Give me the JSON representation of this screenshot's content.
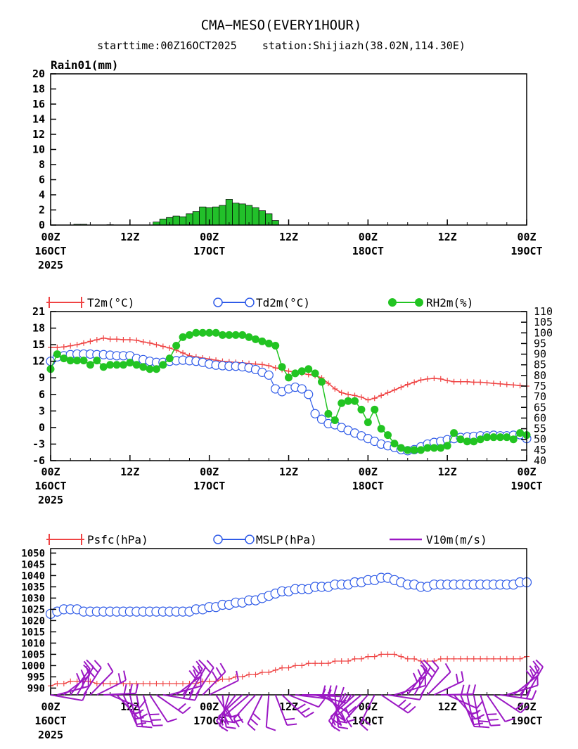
{
  "header": {
    "title": "CMA−MESO(EVERY1HOUR)",
    "subtitle": "starttime:00Z16OCT2025    station:Shijiazh(38.02N,114.30E)"
  },
  "colors": {
    "rain": "#22c02a",
    "t2m": "#ef4444",
    "td2m": "#2f5be8",
    "rh2m": "#22c422",
    "psfc": "#ef4444",
    "mslp": "#2f5be8",
    "v10m": "#9b18c4"
  },
  "time_axis": {
    "hours_total": 72,
    "ticks": [
      {
        "hour": 0,
        "line1": "00Z",
        "line2": "16OCT",
        "line3": "2025"
      },
      {
        "hour": 12,
        "line1": "12Z",
        "line2": "",
        "line3": ""
      },
      {
        "hour": 24,
        "line1": "00Z",
        "line2": "17OCT",
        "line3": ""
      },
      {
        "hour": 36,
        "line1": "12Z",
        "line2": "",
        "line3": ""
      },
      {
        "hour": 48,
        "line1": "00Z",
        "line2": "18OCT",
        "line3": ""
      },
      {
        "hour": 60,
        "line1": "12Z",
        "line2": "",
        "line3": ""
      },
      {
        "hour": 72,
        "line1": "00Z",
        "line2": "19OCT",
        "line3": ""
      }
    ]
  },
  "chart_data": [
    {
      "type": "bar",
      "label": "Rain01(mm)",
      "ylim": [
        0,
        20
      ],
      "yticks": [
        0,
        2,
        4,
        6,
        8,
        10,
        12,
        14,
        16,
        18,
        20
      ],
      "x_hours": [
        4,
        5,
        9,
        16,
        17,
        18,
        19,
        20,
        21,
        22,
        23,
        24,
        25,
        26,
        27,
        28,
        29,
        30,
        31,
        32,
        33,
        34
      ],
      "values": [
        0.1,
        0.1,
        0.05,
        0.4,
        0.8,
        1.0,
        1.2,
        1.1,
        1.5,
        1.8,
        2.4,
        2.3,
        2.4,
        2.6,
        3.4,
        2.9,
        2.8,
        2.6,
        2.3,
        1.9,
        1.5,
        0.6
      ]
    },
    {
      "type": "line",
      "yticks_left": [
        -6,
        -3,
        0,
        3,
        6,
        9,
        12,
        15,
        18,
        21
      ],
      "ylim_left": [
        -6,
        21
      ],
      "yticks_right": [
        40,
        45,
        50,
        55,
        60,
        65,
        70,
        75,
        80,
        85,
        90,
        95,
        100,
        105,
        110
      ],
      "ylim_right": [
        40,
        110
      ],
      "legend": [
        {
          "key": "t2m",
          "label": "T2m(°C)"
        },
        {
          "key": "td2m",
          "label": "Td2m(°C)"
        },
        {
          "key": "rh2m",
          "label": "RH2m(%)"
        }
      ],
      "series": {
        "t2m": [
          14.5,
          14.5,
          14.6,
          14.8,
          15.0,
          15.3,
          15.6,
          15.9,
          16.2,
          16.0,
          16.0,
          15.9,
          15.9,
          15.8,
          15.5,
          15.3,
          15.0,
          14.7,
          14.4,
          14.0,
          13.5,
          13.0,
          12.8,
          12.6,
          12.4,
          12.2,
          12.0,
          11.9,
          11.8,
          11.7,
          11.6,
          11.5,
          11.4,
          11.2,
          10.8,
          10.5,
          10.2,
          10.0,
          9.8,
          9.6,
          9.4,
          9.0,
          8.0,
          7.0,
          6.3,
          6.0,
          5.8,
          5.5,
          5.0,
          5.3,
          5.8,
          6.3,
          6.8,
          7.3,
          7.8,
          8.2,
          8.6,
          8.8,
          8.9,
          8.8,
          8.5,
          8.3,
          8.3,
          8.3,
          8.2,
          8.2,
          8.1,
          8.0,
          7.9,
          7.8,
          7.7,
          7.6,
          7.5
        ],
        "td2m": [
          12.0,
          12.8,
          13.0,
          13.2,
          13.3,
          13.3,
          13.3,
          13.2,
          13.2,
          13.1,
          13.0,
          13.0,
          13.0,
          12.5,
          12.3,
          12.0,
          11.8,
          11.8,
          12.0,
          12.1,
          12.2,
          12.1,
          12.0,
          11.8,
          11.5,
          11.3,
          11.2,
          11.1,
          11.1,
          11.0,
          10.8,
          10.5,
          10.0,
          9.5,
          7.0,
          6.5,
          7.0,
          7.3,
          7.0,
          6.0,
          2.5,
          1.5,
          0.7,
          0.5,
          0.0,
          -0.5,
          -1.0,
          -1.5,
          -2.0,
          -2.5,
          -3.0,
          -3.3,
          -3.6,
          -4.0,
          -4.2,
          -4.0,
          -3.5,
          -3.0,
          -2.7,
          -2.5,
          -2.2,
          -2.0,
          -1.8,
          -1.7,
          -1.6,
          -1.5,
          -1.5,
          -1.4,
          -1.5,
          -1.5,
          -1.4,
          -1.3,
          -2.0
        ],
        "rh2m": [
          83,
          90,
          88,
          87,
          87,
          87,
          85,
          87,
          84,
          85,
          85,
          85,
          86,
          85,
          84,
          83,
          83,
          85,
          88,
          94,
          98,
          99,
          100,
          100,
          100,
          100,
          99,
          99,
          99,
          99,
          98,
          97,
          96,
          95,
          94,
          84,
          79,
          81,
          82,
          83,
          81,
          77,
          62,
          59,
          67,
          68,
          68,
          64,
          58,
          64,
          55,
          52,
          48,
          46,
          45,
          45,
          45,
          46,
          46,
          46,
          47,
          53,
          50,
          49,
          49,
          50,
          51,
          51,
          51,
          51,
          50,
          53,
          52
        ]
      }
    },
    {
      "type": "line",
      "yticks": [
        990,
        995,
        1000,
        1005,
        1010,
        1015,
        1020,
        1025,
        1030,
        1035,
        1040,
        1045,
        1050
      ],
      "ylim": [
        987,
        1052
      ],
      "legend": [
        {
          "key": "psfc",
          "label": "Psfc(hPa)"
        },
        {
          "key": "mslp",
          "label": "MSLP(hPa)"
        },
        {
          "key": "v10m",
          "label": "V10m(m/s)"
        }
      ],
      "series": {
        "mslp": [
          1023,
          1024,
          1025,
          1025,
          1025,
          1024,
          1024,
          1024,
          1024,
          1024,
          1024,
          1024,
          1024,
          1024,
          1024,
          1024,
          1024,
          1024,
          1024,
          1024,
          1024,
          1024,
          1025,
          1025,
          1026,
          1026,
          1027,
          1027,
          1028,
          1028,
          1029,
          1029,
          1030,
          1031,
          1032,
          1033,
          1033,
          1034,
          1034,
          1034,
          1035,
          1035,
          1035,
          1036,
          1036,
          1036,
          1037,
          1037,
          1038,
          1038,
          1039,
          1039,
          1038,
          1037,
          1036,
          1036,
          1035,
          1035,
          1036,
          1036,
          1036,
          1036,
          1036,
          1036,
          1036,
          1036,
          1036,
          1036,
          1036,
          1036,
          1036,
          1037,
          1037
        ],
        "psfc": [
          991,
          992,
          992,
          993,
          993,
          993,
          993,
          992,
          992,
          992,
          992,
          992,
          992,
          992,
          992,
          992,
          992,
          992,
          992,
          992,
          992,
          992,
          992,
          993,
          993,
          993,
          994,
          994,
          995,
          995,
          996,
          996,
          997,
          997,
          998,
          999,
          999,
          1000,
          1000,
          1001,
          1001,
          1001,
          1001,
          1002,
          1002,
          1002,
          1003,
          1003,
          1004,
          1004,
          1005,
          1005,
          1005,
          1004,
          1003,
          1003,
          1002,
          1002,
          1002,
          1003,
          1003,
          1003,
          1003,
          1003,
          1003,
          1003,
          1003,
          1003,
          1003,
          1003,
          1003,
          1003,
          1004
        ]
      }
    }
  ]
}
